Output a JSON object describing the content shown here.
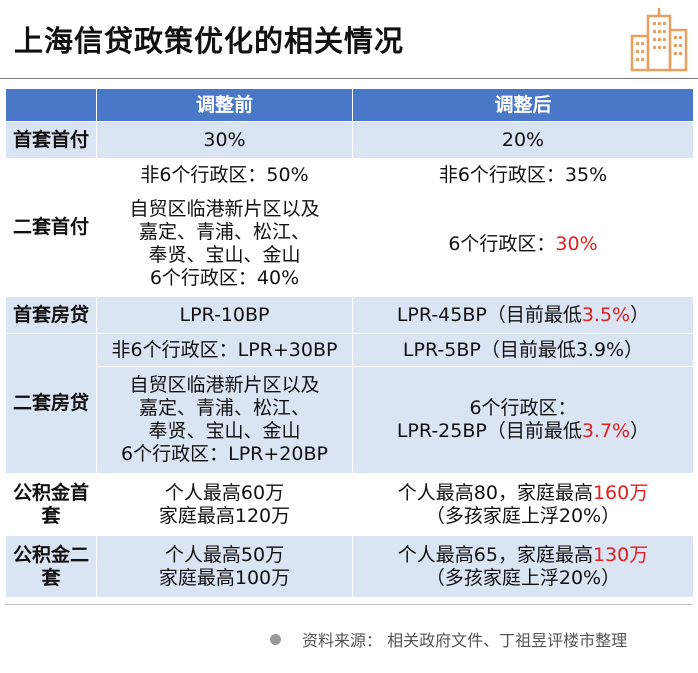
{
  "title": "上海信贷政策优化的相关情况",
  "logo": {
    "icon": "building-icon",
    "color": "#e8a060"
  },
  "table": {
    "headers": [
      "",
      "调整前",
      "调整后"
    ],
    "rows": {
      "r1": {
        "label": "首套首付",
        "before": "30%",
        "after": "20%"
      },
      "r2": {
        "label": "二套首付",
        "before_a": "非6个行政区：50%",
        "after_a": "非6个行政区：35%",
        "before_b": [
          "自贸区临港新片区以及",
          "嘉定、青浦、松江、",
          "奉贤、宝山、金山",
          "6个行政区：40%"
        ],
        "after_b_prefix": "6个行政区：",
        "after_b_value": "30%"
      },
      "r3": {
        "label": "首套房贷",
        "before": "LPR-10BP",
        "after_prefix": "LPR-45BP（目前最低",
        "after_value": "3.5%",
        "after_suffix": "）"
      },
      "r4": {
        "label": "二套房贷",
        "before_a": "非6个行政区：LPR+30BP",
        "after_a": "LPR-5BP（目前最低3.9%）",
        "before_b": [
          "自贸区临港新片区以及",
          "嘉定、青浦、松江、",
          "奉贤、宝山、金山",
          "6个行政区：LPR+20BP"
        ],
        "after_b_line1": "6个行政区：",
        "after_b_prefix": "LPR-25BP（目前最低",
        "after_b_value": "3.7%",
        "after_b_suffix": "）"
      },
      "r5": {
        "label": [
          "公积金首",
          "套"
        ],
        "before": [
          "个人最高60万",
          "家庭最高120万"
        ],
        "after_prefix": "个人最高80，家庭最高",
        "after_value": "160万",
        "after_line2": "（多孩家庭上浮20%）"
      },
      "r6": {
        "label": [
          "公积金二",
          "套"
        ],
        "before": [
          "个人最高50万",
          "家庭最高100万"
        ],
        "after_prefix": "个人最高65，家庭最高",
        "after_value": "130万",
        "after_line2": "（多孩家庭上浮20%）"
      }
    }
  },
  "footer": {
    "source": "资料来源：  相关政府文件、丁祖昱评楼市整理"
  },
  "colors": {
    "header_bg": "#4a78c8",
    "shade_bg": "#dbe4f3",
    "highlight": "#e02020"
  }
}
